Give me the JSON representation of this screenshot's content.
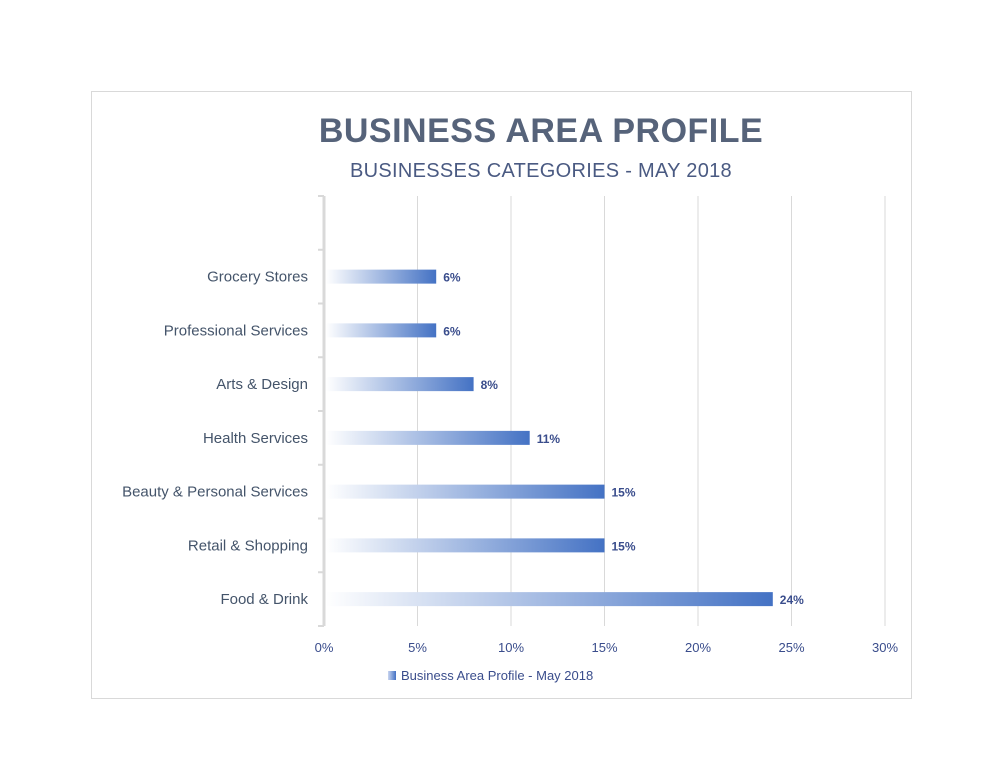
{
  "chart_data": {
    "type": "bar",
    "orientation": "horizontal",
    "title": "BUSINESS AREA PROFILE",
    "subtitle": "BUSINESSES CATEGORIES - MAY 2018",
    "categories": [
      "Grocery Stores",
      "Professional Services",
      "Arts & Design",
      "Health Services",
      "Beauty & Personal Services",
      "Retail & Shopping",
      "Food & Drink"
    ],
    "series": [
      {
        "name": "Business Area Profile - May 2018",
        "values": [
          6,
          6,
          8,
          11,
          15,
          15,
          24
        ],
        "labels": [
          "6%",
          "6%",
          "8%",
          "11%",
          "15%",
          "15%",
          "24%"
        ]
      }
    ],
    "xlim": [
      0,
      30
    ],
    "x_ticks": [
      "0%",
      "5%",
      "10%",
      "15%",
      "20%",
      "25%",
      "30%"
    ],
    "grid": true,
    "legend_position": "bottom",
    "colors": {
      "bar_start": "#ffffff",
      "bar_end": "#4472c4",
      "text": "#44546a",
      "axis_text": "#3a4d8c"
    }
  }
}
